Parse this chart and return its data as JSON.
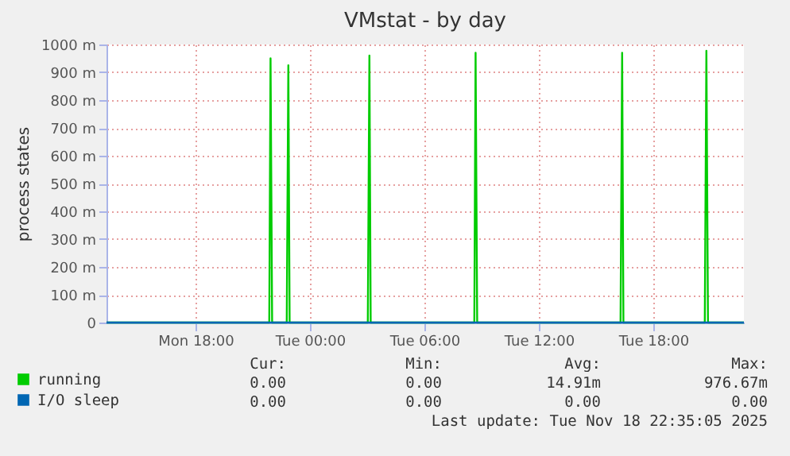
{
  "chart_data": {
    "type": "line",
    "title": "VMstat - by day",
    "ylabel": "process states",
    "xlim": [
      "2025-11-17T13:20",
      "2025-11-18T22:45"
    ],
    "xticks": [
      {
        "value": "2025-11-17T18:00",
        "label": "Mon 18:00"
      },
      {
        "value": "2025-11-18T00:00",
        "label": "Tue 00:00"
      },
      {
        "value": "2025-11-18T06:00",
        "label": "Tue 06:00"
      },
      {
        "value": "2025-11-18T12:00",
        "label": "Tue 12:00"
      },
      {
        "value": "2025-11-18T18:00",
        "label": "Tue 18:00"
      }
    ],
    "ylim": [
      0,
      1000
    ],
    "yticks": [
      0,
      {
        "value": 100,
        "label": "100 m"
      },
      {
        "value": 200,
        "label": "200 m"
      },
      {
        "value": 300,
        "label": "300 m"
      },
      {
        "value": 400,
        "label": "400 m"
      },
      {
        "value": 500,
        "label": "500 m"
      },
      {
        "value": 600,
        "label": "600 m"
      },
      {
        "value": 700,
        "label": "700 m"
      },
      {
        "value": 800,
        "label": "800 m"
      },
      {
        "value": 900,
        "label": "900 m"
      },
      {
        "value": 1000,
        "label": "1000 m"
      }
    ],
    "series": [
      {
        "name": "running",
        "color": "#00cc00",
        "x": [
          "2025-11-17T13:20",
          "2025-11-17T21:52",
          "2025-11-17T21:56",
          "2025-11-17T22:01",
          "2025-11-17T22:47",
          "2025-11-17T22:52",
          "2025-11-17T22:56",
          "2025-11-18T03:02",
          "2025-11-18T03:07",
          "2025-11-18T03:11",
          "2025-11-18T08:37",
          "2025-11-18T08:41",
          "2025-11-18T08:46",
          "2025-11-18T16:17",
          "2025-11-18T16:22",
          "2025-11-18T16:26",
          "2025-11-18T20:42",
          "2025-11-18T20:47",
          "2025-11-18T20:52",
          "2025-11-18T22:45"
        ],
        "values": [
          0,
          0,
          950,
          0,
          0,
          925,
          0,
          0,
          960,
          0,
          0,
          970,
          0,
          0,
          970,
          0,
          0,
          977,
          0,
          0
        ]
      },
      {
        "name": "I/O sleep",
        "color": "#0066b3",
        "x": [
          "2025-11-17T13:20",
          "2025-11-18T22:45"
        ],
        "values": [
          0,
          0
        ]
      }
    ],
    "grid": true,
    "legend": "bottom left",
    "annotations": [
      "Cur:",
      "Min:",
      "Avg:",
      "Max:",
      "0.00",
      "0.00",
      "14.91m",
      "976.67m",
      "0.00",
      "0.00",
      "0.00",
      "0.00",
      "Last update: Tue Nov 18 22:35:05 2025"
    ]
  }
}
